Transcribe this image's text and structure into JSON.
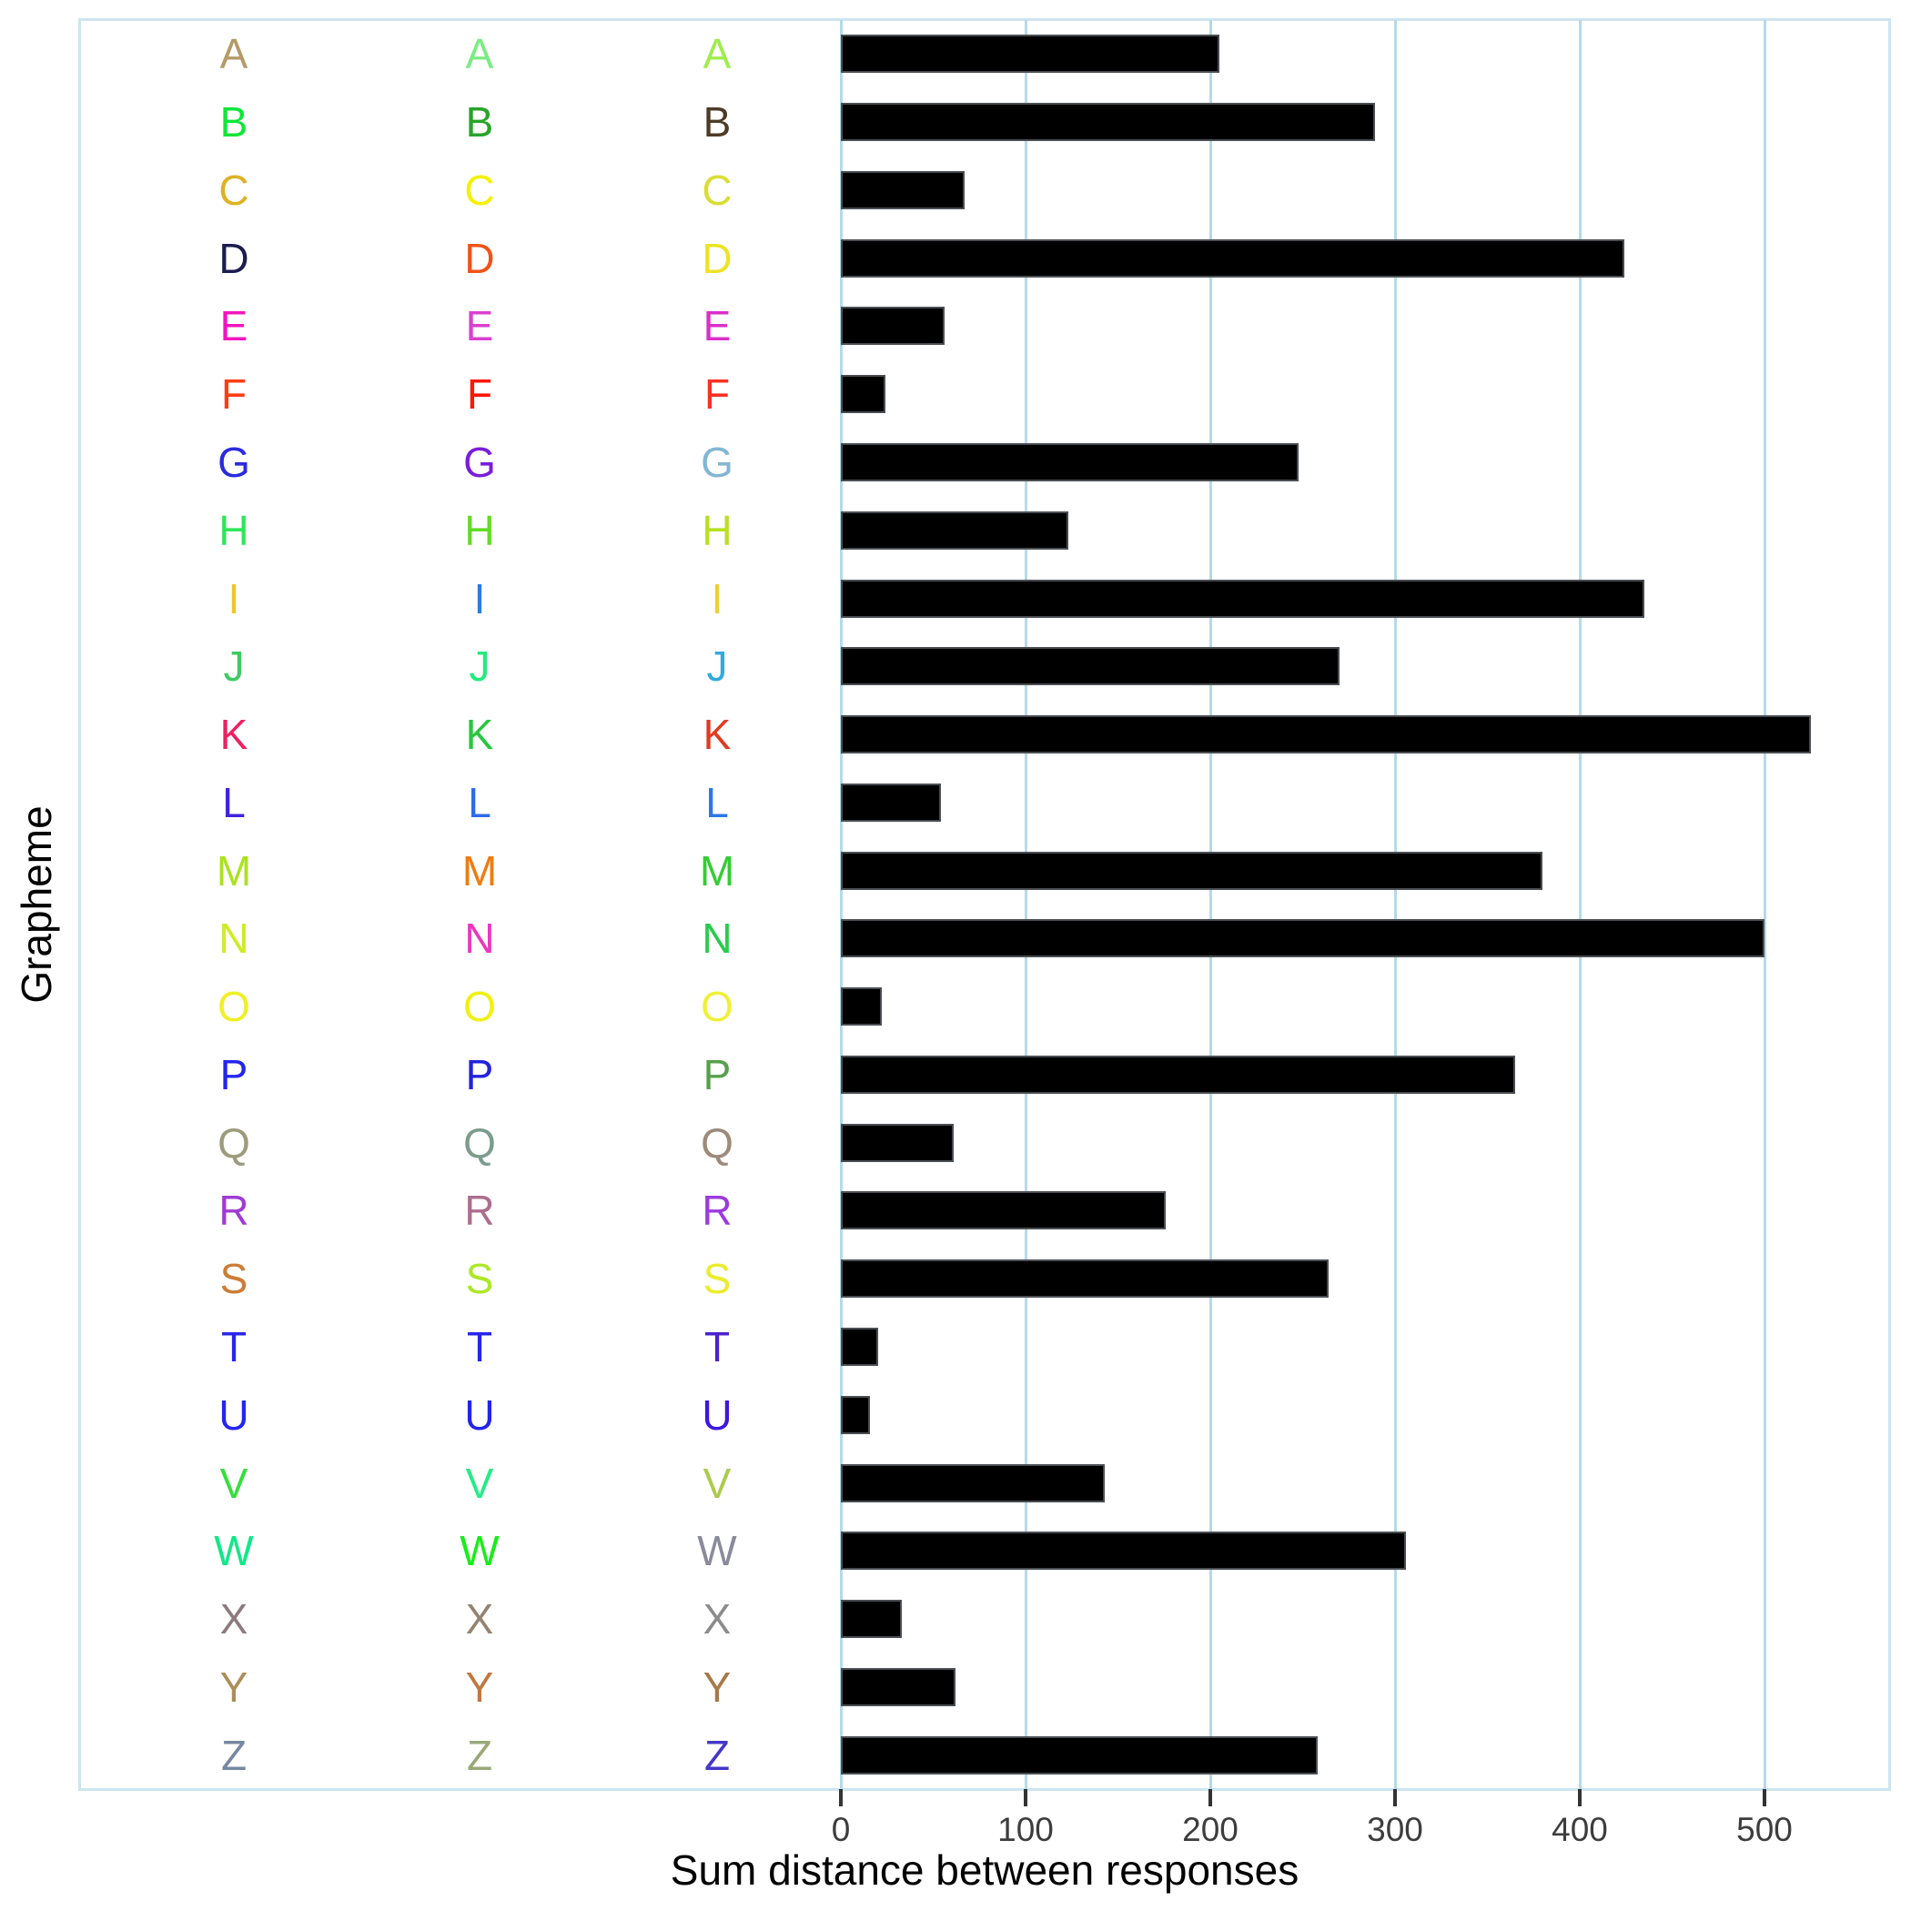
{
  "x_axis": {
    "title": "Sum distance between responses",
    "tick_labels": [
      "0",
      "100",
      "200",
      "300",
      "400",
      "500"
    ],
    "tick_values": [
      0,
      100,
      200,
      300,
      400,
      500
    ]
  },
  "y_axis": {
    "title": "Grapheme"
  },
  "colors": {
    "gridline": "#b5dae9",
    "panel_border": "#cde5f0",
    "bar_fill": "#000000",
    "bar_edge": "#4a4e52",
    "tick_mark": "#333333",
    "tick_label": "#3d3d3d",
    "axis_title": "#000000"
  },
  "chart_data": {
    "type": "bar",
    "orientation": "horizontal",
    "title": "",
    "xlabel": "Sum distance between responses",
    "ylabel": "Grapheme",
    "xlim": [
      0,
      567
    ],
    "x_ticks": [
      0,
      100,
      200,
      300,
      400,
      500
    ],
    "grid": "vertical major gridlines, light blue",
    "legend": "none",
    "categories": [
      "A",
      "B",
      "C",
      "D",
      "E",
      "F",
      "G",
      "H",
      "I",
      "J",
      "K",
      "L",
      "M",
      "N",
      "O",
      "P",
      "Q",
      "R",
      "S",
      "T",
      "U",
      "V",
      "W",
      "X",
      "Y",
      "Z"
    ],
    "values": [
      205,
      289,
      67,
      424,
      56,
      24,
      248,
      123,
      435,
      270,
      525,
      54,
      380,
      500,
      22,
      365,
      61,
      176,
      264,
      20,
      16,
      143,
      306,
      33,
      62,
      258
    ],
    "letter_colors": [
      [
        "#b59a67",
        "#7cec83",
        "#a0ec4f"
      ],
      [
        "#12e538",
        "#28a428",
        "#4e3b26"
      ],
      [
        "#ddb224",
        "#f2f200",
        "#d9de33"
      ],
      [
        "#1c1c4e",
        "#f05318",
        "#ece424"
      ],
      [
        "#f414be",
        "#d940d1",
        "#da2eca"
      ],
      [
        "#fb3d14",
        "#ff1605",
        "#f93122"
      ],
      [
        "#2a2ae2",
        "#7a1ed8",
        "#82b6d2"
      ],
      [
        "#2fe659",
        "#63db25",
        "#b8e020"
      ],
      [
        "#edc52f",
        "#2e7bdb",
        "#efcf30"
      ],
      [
        "#3fcb63",
        "#22ec7c",
        "#33aadd"
      ],
      [
        "#ee2062",
        "#26c83e",
        "#e03a20"
      ],
      [
        "#3f23e0",
        "#2e6bea",
        "#2b78e8"
      ],
      [
        "#abe21e",
        "#ee7c12",
        "#35cc35"
      ],
      [
        "#cdec25",
        "#ea37be",
        "#28cd4a"
      ],
      [
        "#efef26",
        "#f0f012",
        "#f0f03a"
      ],
      [
        "#2525ec",
        "#2222de",
        "#56a04a"
      ],
      [
        "#9c9c7c",
        "#7c9c8c",
        "#9c8a7a"
      ],
      [
        "#9f3bd3",
        "#ac6e8e",
        "#9c3adf"
      ],
      [
        "#cb7d36",
        "#ace829",
        "#ecec2c"
      ],
      [
        "#2b25ea",
        "#2525f0",
        "#4b22cb"
      ],
      [
        "#2525f0",
        "#2323f0",
        "#3d17dd"
      ],
      [
        "#36df3b",
        "#25ec85",
        "#accb4d"
      ],
      [
        "#10e888",
        "#18ee18",
        "#8a8a9c"
      ],
      [
        "#8d7a7e",
        "#94836f",
        "#8c8c8c"
      ],
      [
        "#ac8e5c",
        "#c07840",
        "#a87848"
      ],
      [
        "#7788a0",
        "#9aa878",
        "#4438c8"
      ]
    ]
  }
}
